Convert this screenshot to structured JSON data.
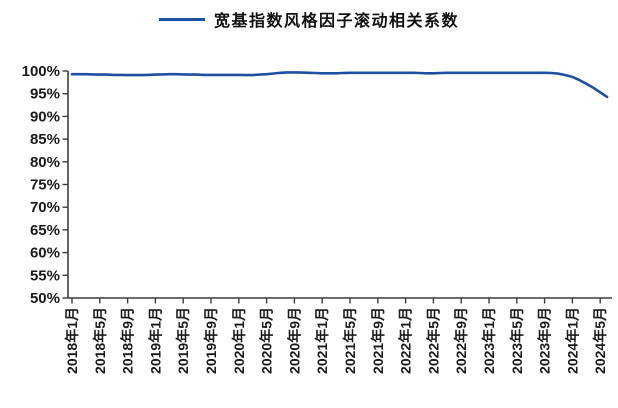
{
  "page": {
    "background": "#ffffff"
  },
  "legend": {
    "label": "宽基指数风格因子滚动相关系数",
    "swatch_color": "#1F4FA0"
  },
  "colors": {
    "line": "#1F4FA0",
    "axis": "#3d3d3d",
    "label_text": "#1a1a1a",
    "background": "#ffffff"
  },
  "chart_data": {
    "type": "line",
    "title": "",
    "legend_position": "top-center",
    "grid": false,
    "ylim": [
      "50%",
      "100%"
    ],
    "y_tick_labels": [
      "100%",
      "95%",
      "90%",
      "85%",
      "80%",
      "75%",
      "70%",
      "65%",
      "60%",
      "55%",
      "50%"
    ],
    "x_tick_labels": [
      "2018年1月",
      "2018年5月",
      "2018年9月",
      "2019年1月",
      "2019年5月",
      "2019年9月",
      "2020年1月",
      "2020年5月",
      "2020年9月",
      "2021年1月",
      "2021年5月",
      "2021年9月",
      "2022年1月",
      "2022年5月",
      "2022年9月",
      "2023年1月",
      "2023年5月",
      "2023年9月",
      "2024年1月",
      "2024年5月"
    ],
    "x_frequency": "monthly",
    "x_start": "2018年1月",
    "x_end": "2024年6月",
    "series": [
      {
        "name": "宽基指数风格因子滚动相关系数",
        "color": "#1F4FA0",
        "unit": "%",
        "values": [
          99.3,
          99.3,
          99.3,
          99.25,
          99.2,
          99.2,
          99.15,
          99.15,
          99.1,
          99.1,
          99.1,
          99.15,
          99.2,
          99.25,
          99.3,
          99.3,
          99.25,
          99.2,
          99.2,
          99.15,
          99.15,
          99.15,
          99.15,
          99.15,
          99.15,
          99.1,
          99.1,
          99.2,
          99.3,
          99.45,
          99.6,
          99.7,
          99.7,
          99.65,
          99.6,
          99.55,
          99.5,
          99.5,
          99.5,
          99.55,
          99.6,
          99.6,
          99.6,
          99.6,
          99.6,
          99.6,
          99.6,
          99.6,
          99.6,
          99.6,
          99.55,
          99.5,
          99.5,
          99.55,
          99.6,
          99.6,
          99.6,
          99.6,
          99.6,
          99.6,
          99.6,
          99.6,
          99.6,
          99.6,
          99.6,
          99.6,
          99.6,
          99.6,
          99.6,
          99.55,
          99.4,
          99.1,
          98.7,
          98.0,
          97.2,
          96.3,
          95.3,
          94.3
        ]
      }
    ]
  }
}
